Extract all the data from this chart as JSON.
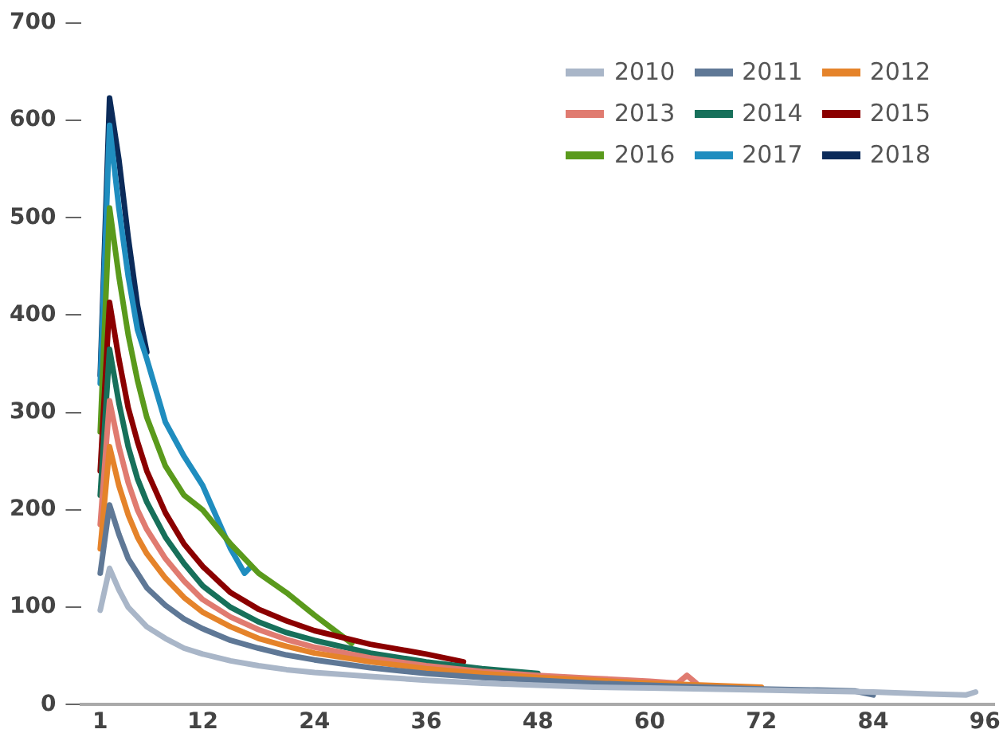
{
  "chart_data": {
    "type": "line",
    "xlim": [
      -1,
      97
    ],
    "xticks": [
      1,
      12,
      24,
      36,
      48,
      60,
      72,
      84,
      96
    ],
    "ylim": [
      0,
      700
    ],
    "yticks": [
      0,
      100,
      200,
      300,
      400,
      500,
      600,
      700
    ],
    "grid": false,
    "legend": "top right",
    "marker": "none",
    "series": [
      {
        "name": "2010",
        "color": "#a9b6c8",
        "x": [
          1,
          2,
          3,
          4,
          5,
          6,
          8,
          10,
          12,
          15,
          18,
          21,
          24,
          30,
          36,
          42,
          48,
          54,
          60,
          66,
          72,
          78,
          84,
          90,
          94,
          95
        ],
        "values": [
          97,
          140,
          118,
          100,
          90,
          80,
          68,
          58,
          52,
          45,
          40,
          36,
          33,
          29,
          25,
          22,
          20,
          18,
          17,
          16,
          15,
          14,
          13,
          11,
          10,
          13
        ]
      },
      {
        "name": "2011",
        "color": "#5f7896",
        "x": [
          1,
          2,
          3,
          4,
          5,
          6,
          8,
          10,
          12,
          15,
          18,
          21,
          24,
          30,
          36,
          42,
          48,
          54,
          60,
          66,
          72,
          78,
          82,
          84
        ],
        "values": [
          135,
          205,
          175,
          150,
          135,
          120,
          102,
          88,
          78,
          66,
          58,
          51,
          46,
          38,
          32,
          28,
          25,
          22,
          20,
          18,
          16,
          15,
          14,
          10
        ]
      },
      {
        "name": "2012",
        "color": "#e5832a",
        "x": [
          1,
          2,
          3,
          4,
          5,
          6,
          8,
          10,
          12,
          15,
          18,
          21,
          24,
          30,
          36,
          42,
          48,
          54,
          60,
          66,
          72
        ],
        "values": [
          160,
          265,
          225,
          195,
          172,
          155,
          130,
          110,
          95,
          80,
          68,
          60,
          53,
          44,
          37,
          32,
          28,
          25,
          22,
          20,
          18
        ]
      },
      {
        "name": "2013",
        "color": "#e07b70",
        "x": [
          1,
          2,
          3,
          4,
          5,
          6,
          8,
          10,
          12,
          15,
          18,
          21,
          24,
          30,
          36,
          42,
          48,
          54,
          60,
          63,
          64,
          65
        ],
        "values": [
          185,
          312,
          265,
          228,
          200,
          180,
          150,
          127,
          108,
          90,
          77,
          67,
          59,
          48,
          40,
          34,
          30,
          27,
          24,
          22,
          30,
          22
        ]
      },
      {
        "name": "2014",
        "color": "#17705a",
        "x": [
          1,
          2,
          3,
          4,
          5,
          6,
          8,
          10,
          12,
          15,
          18,
          21,
          24,
          30,
          36,
          42,
          48
        ],
        "values": [
          215,
          365,
          310,
          265,
          232,
          208,
          172,
          145,
          122,
          100,
          85,
          74,
          66,
          53,
          44,
          37,
          32
        ]
      },
      {
        "name": "2015",
        "color": "#8b0000",
        "x": [
          1,
          2,
          3,
          4,
          5,
          6,
          8,
          10,
          12,
          15,
          18,
          21,
          24,
          30,
          36,
          40
        ],
        "values": [
          240,
          413,
          355,
          305,
          270,
          240,
          197,
          165,
          142,
          115,
          98,
          86,
          76,
          62,
          52,
          44
        ]
      },
      {
        "name": "2016",
        "color": "#5a9a1c",
        "x": [
          1,
          2,
          3,
          4,
          5,
          6,
          8,
          10,
          12,
          15,
          18,
          21,
          24,
          28
        ],
        "values": [
          280,
          510,
          440,
          380,
          333,
          295,
          245,
          215,
          200,
          165,
          135,
          115,
          92,
          63
        ]
      },
      {
        "name": "2017",
        "color": "#1f8dbf",
        "x": [
          1,
          2,
          3,
          4,
          5,
          6,
          8,
          10,
          12,
          15,
          16.5,
          17
        ],
        "values": [
          330,
          595,
          510,
          440,
          385,
          355,
          290,
          255,
          225,
          160,
          135,
          140
        ]
      },
      {
        "name": "2018",
        "color": "#0b2b5a",
        "x": [
          1,
          2,
          3,
          4,
          5,
          6
        ],
        "values": [
          338,
          623,
          560,
          480,
          410,
          362
        ]
      }
    ]
  }
}
